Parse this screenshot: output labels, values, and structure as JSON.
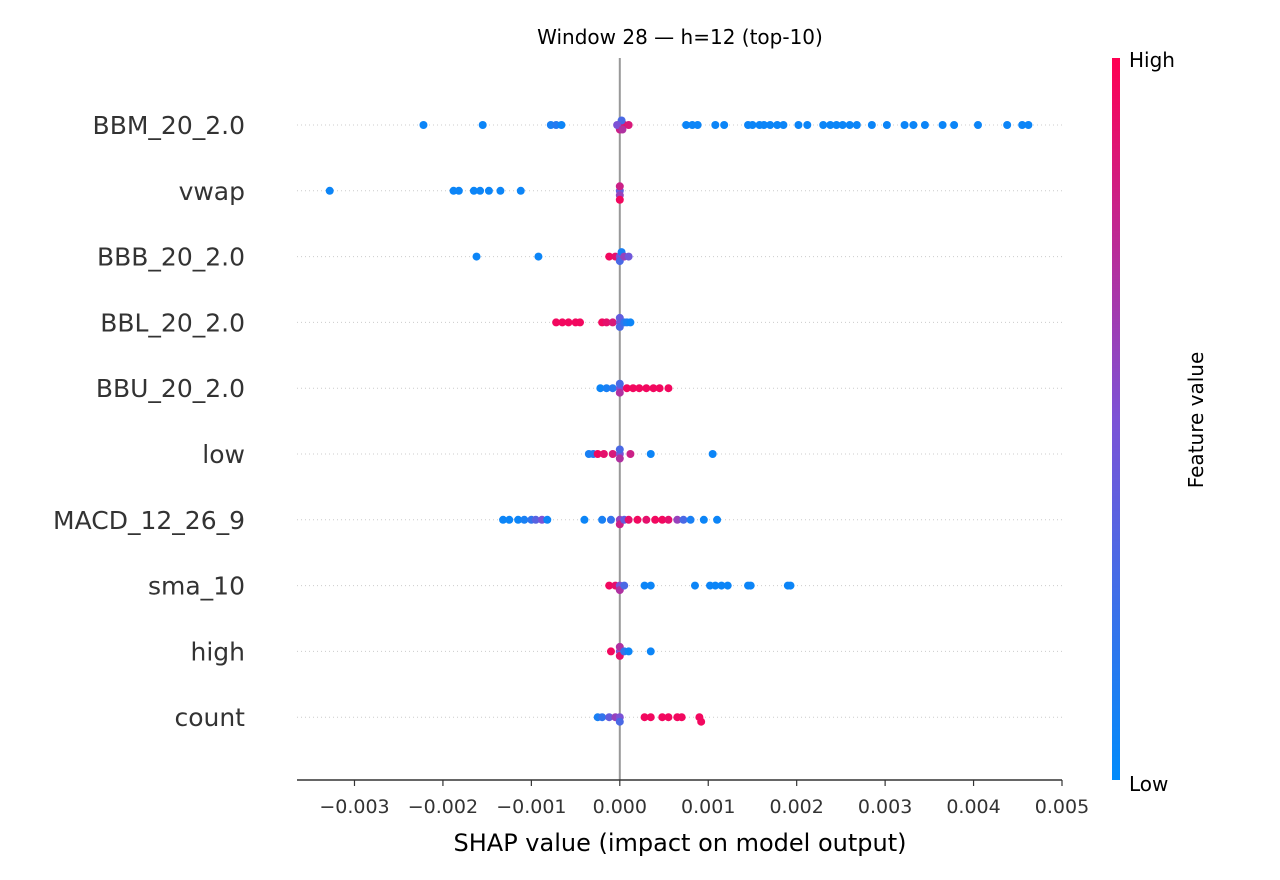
{
  "chart_data": {
    "type": "scatter",
    "title": "Window 28 — h=12 (top-10)",
    "xlabel": "SHAP value (impact on model output)",
    "xlim": [
      -0.00365,
      0.005
    ],
    "xticks": [
      {
        "value": -0.003,
        "label": "−0.003"
      },
      {
        "value": -0.002,
        "label": "−0.002"
      },
      {
        "value": -0.001,
        "label": "−0.001"
      },
      {
        "value": 0.0,
        "label": "0.000"
      },
      {
        "value": 0.001,
        "label": "0.001"
      },
      {
        "value": 0.002,
        "label": "0.002"
      },
      {
        "value": 0.003,
        "label": "0.003"
      },
      {
        "value": 0.004,
        "label": "0.004"
      },
      {
        "value": 0.005,
        "label": "0.005"
      }
    ],
    "zero_line": 0.0,
    "grid": "dotted horizontal row guides",
    "colorbar": {
      "label": "Feature value",
      "high_label": "High",
      "low_label": "Low",
      "low_color": "#008bfb",
      "mid_color": "#7c52d6",
      "high_color": "#ff0052",
      "placement": "right"
    },
    "features": [
      {
        "name": "BBM_20_2.0",
        "points": [
          [
            -0.00222,
            0.05
          ],
          [
            -0.00155,
            0.05
          ],
          [
            -0.00078,
            0.1
          ],
          [
            -0.00072,
            0.15
          ],
          [
            -0.00066,
            0.05
          ],
          [
            0.0,
            0.6
          ],
          [
            0.0,
            0.8
          ],
          [
            5e-05,
            0.9
          ],
          [
            2e-05,
            0.3
          ],
          [
            -3e-05,
            0.5
          ],
          [
            3e-05,
            0.7
          ],
          [
            0.0001,
            0.85
          ],
          [
            0.00075,
            0.05
          ],
          [
            0.00082,
            0.05
          ],
          [
            0.00088,
            0.05
          ],
          [
            0.00108,
            0.05
          ],
          [
            0.00118,
            0.05
          ],
          [
            0.00145,
            0.05
          ],
          [
            0.0015,
            0.05
          ],
          [
            0.00158,
            0.05
          ],
          [
            0.00163,
            0.05
          ],
          [
            0.0017,
            0.05
          ],
          [
            0.00178,
            0.05
          ],
          [
            0.00185,
            0.05
          ],
          [
            0.00202,
            0.05
          ],
          [
            0.00212,
            0.05
          ],
          [
            0.0023,
            0.05
          ],
          [
            0.00238,
            0.05
          ],
          [
            0.00245,
            0.05
          ],
          [
            0.00252,
            0.05
          ],
          [
            0.0026,
            0.05
          ],
          [
            0.00268,
            0.05
          ],
          [
            0.00285,
            0.05
          ],
          [
            0.00302,
            0.05
          ],
          [
            0.00322,
            0.05
          ],
          [
            0.00332,
            0.05
          ],
          [
            0.00345,
            0.05
          ],
          [
            0.00365,
            0.05
          ],
          [
            0.00378,
            0.05
          ],
          [
            0.00405,
            0.05
          ],
          [
            0.00438,
            0.05
          ],
          [
            0.00455,
            0.05
          ],
          [
            0.00462,
            0.05
          ]
        ]
      },
      {
        "name": "vwap",
        "points": [
          [
            -0.00328,
            0.05
          ],
          [
            -0.00188,
            0.05
          ],
          [
            -0.00182,
            0.05
          ],
          [
            -0.00165,
            0.05
          ],
          [
            -0.00158,
            0.05
          ],
          [
            -0.00148,
            0.05
          ],
          [
            -0.00135,
            0.05
          ],
          [
            -0.00112,
            0.05
          ],
          [
            0.0,
            0.4
          ],
          [
            0.0,
            0.6
          ],
          [
            0.0,
            0.8
          ],
          [
            0.0,
            0.95
          ]
        ]
      },
      {
        "name": "BBB_20_2.0",
        "points": [
          [
            -0.00162,
            0.05
          ],
          [
            -0.00092,
            0.05
          ],
          [
            -0.00012,
            0.95
          ],
          [
            -5e-05,
            0.9
          ],
          [
            0.0,
            0.5
          ],
          [
            0.0,
            0.3
          ],
          [
            2e-05,
            0.1
          ],
          [
            5e-05,
            0.6
          ],
          [
            0.0001,
            0.45
          ]
        ]
      },
      {
        "name": "BBL_20_2.0",
        "points": [
          [
            -0.00072,
            0.95
          ],
          [
            -0.00065,
            0.95
          ],
          [
            -0.00058,
            0.95
          ],
          [
            -0.0005,
            0.95
          ],
          [
            -0.00045,
            0.95
          ],
          [
            -0.0002,
            0.95
          ],
          [
            -0.00015,
            0.9
          ],
          [
            -8e-05,
            0.85
          ],
          [
            0.0,
            0.5
          ],
          [
            0.0,
            0.3
          ],
          [
            0.0,
            0.4
          ],
          [
            5e-05,
            0.2
          ],
          [
            8e-05,
            0.1
          ],
          [
            0.00012,
            0.05
          ]
        ]
      },
      {
        "name": "BBU_20_2.0",
        "points": [
          [
            -0.00022,
            0.05
          ],
          [
            -0.00015,
            0.1
          ],
          [
            -8e-05,
            0.15
          ],
          [
            0.0,
            0.5
          ],
          [
            0.0,
            0.7
          ],
          [
            0.0,
            0.3
          ],
          [
            8e-05,
            0.95
          ],
          [
            0.00015,
            0.95
          ],
          [
            0.00022,
            0.95
          ],
          [
            0.0003,
            0.95
          ],
          [
            0.00038,
            0.95
          ],
          [
            0.00045,
            0.95
          ],
          [
            0.00055,
            0.95
          ]
        ]
      },
      {
        "name": "low",
        "points": [
          [
            -0.00035,
            0.1
          ],
          [
            -0.0003,
            0.15
          ],
          [
            -0.00025,
            0.95
          ],
          [
            -0.00018,
            0.9
          ],
          [
            -8e-05,
            0.85
          ],
          [
            0.0,
            0.5
          ],
          [
            0.0,
            0.7
          ],
          [
            0.0,
            0.3
          ],
          [
            0.00012,
            0.8
          ],
          [
            0.00035,
            0.05
          ],
          [
            0.00105,
            0.05
          ]
        ]
      },
      {
        "name": "MACD_12_26_9",
        "points": [
          [
            -0.00132,
            0.05
          ],
          [
            -0.00125,
            0.05
          ],
          [
            -0.00115,
            0.05
          ],
          [
            -0.00108,
            0.1
          ],
          [
            -0.001,
            0.2
          ],
          [
            -0.00095,
            0.35
          ],
          [
            -0.00088,
            0.5
          ],
          [
            -0.00082,
            0.05
          ],
          [
            -0.0004,
            0.05
          ],
          [
            -0.0002,
            0.1
          ],
          [
            -0.0001,
            0.2
          ],
          [
            0.0,
            0.6
          ],
          [
            0.0,
            0.8
          ],
          [
            5e-05,
            0.4
          ],
          [
            0.0001,
            0.9
          ],
          [
            0.0002,
            0.95
          ],
          [
            0.0003,
            0.9
          ],
          [
            0.0004,
            0.95
          ],
          [
            0.00048,
            0.95
          ],
          [
            0.00055,
            0.9
          ],
          [
            0.00065,
            0.6
          ],
          [
            0.00072,
            0.3
          ],
          [
            0.0008,
            0.1
          ],
          [
            0.00095,
            0.05
          ],
          [
            0.0011,
            0.05
          ]
        ]
      },
      {
        "name": "sma_10",
        "points": [
          [
            -0.00012,
            0.95
          ],
          [
            -5e-05,
            0.9
          ],
          [
            0.0,
            0.5
          ],
          [
            0.0,
            0.7
          ],
          [
            5e-05,
            0.3
          ],
          [
            0.00028,
            0.05
          ],
          [
            0.00035,
            0.05
          ],
          [
            0.00085,
            0.05
          ],
          [
            0.00102,
            0.05
          ],
          [
            0.00108,
            0.05
          ],
          [
            0.00115,
            0.05
          ],
          [
            0.00122,
            0.05
          ],
          [
            0.00145,
            0.05
          ],
          [
            0.00148,
            0.05
          ],
          [
            0.0019,
            0.05
          ],
          [
            0.00193,
            0.05
          ]
        ]
      },
      {
        "name": "high",
        "points": [
          [
            -0.0001,
            0.95
          ],
          [
            0.0,
            0.5
          ],
          [
            0.0,
            0.9
          ],
          [
            0.0,
            0.7
          ],
          [
            5e-05,
            0.2
          ],
          [
            0.0001,
            0.05
          ],
          [
            0.00035,
            0.05
          ]
        ]
      },
      {
        "name": "count",
        "points": [
          [
            -0.00025,
            0.1
          ],
          [
            -0.0002,
            0.2
          ],
          [
            -0.00012,
            0.4
          ],
          [
            -5e-05,
            0.6
          ],
          [
            0.0,
            0.5
          ],
          [
            0.0,
            0.3
          ],
          [
            0.00028,
            0.95
          ],
          [
            0.00035,
            0.95
          ],
          [
            0.00048,
            0.95
          ],
          [
            0.00055,
            0.95
          ],
          [
            0.00065,
            0.95
          ],
          [
            0.0007,
            0.95
          ],
          [
            0.0009,
            0.95
          ],
          [
            0.00092,
            0.95
          ]
        ]
      }
    ]
  }
}
